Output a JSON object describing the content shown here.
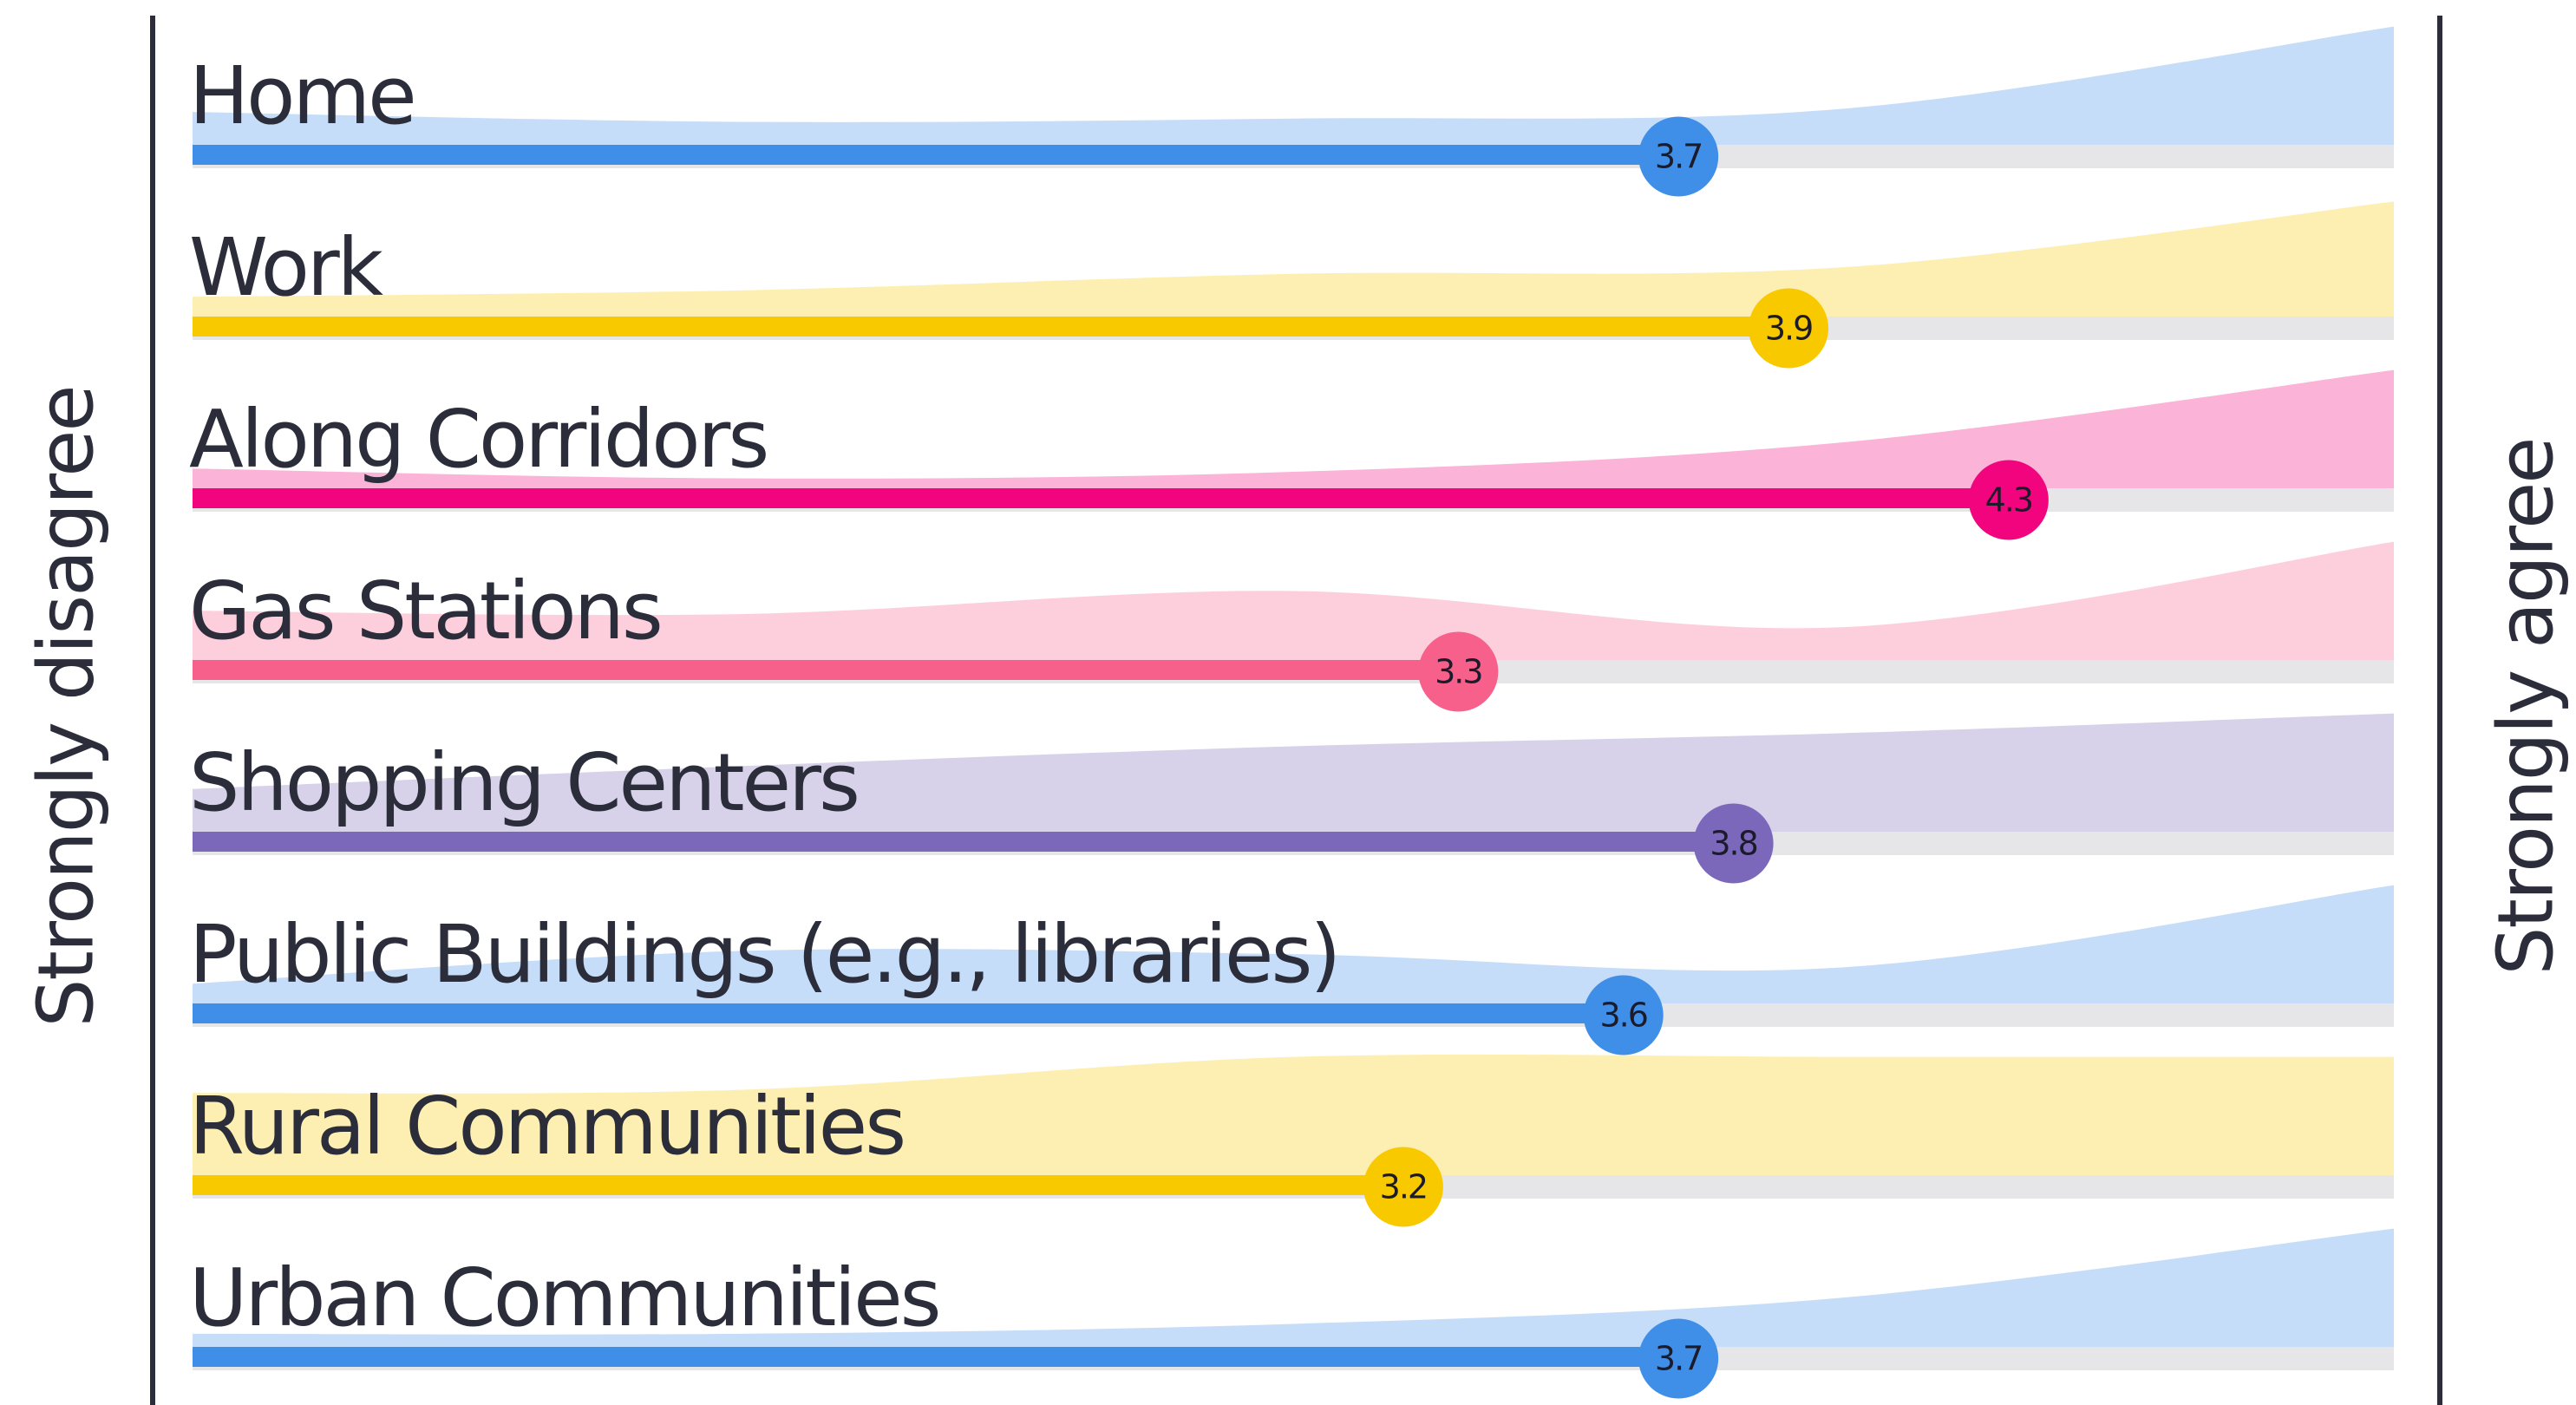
{
  "chart_data": {
    "type": "bar",
    "categories": [
      "Home",
      "Work",
      "Along Corridors",
      "Gas Stations",
      "Shopping Centers",
      "Public Buildings (e.g., libraries)",
      "Rural Communities",
      "Urban Communities"
    ],
    "values": [
      3.7,
      3.9,
      4.3,
      3.3,
      3.8,
      3.6,
      3.2,
      3.7
    ],
    "colors": [
      "#3f8fe8",
      "#f9c900",
      "#f2047f",
      "#f7608b",
      "#7c68bb",
      "#3f8fe8",
      "#f9c900",
      "#3f8fe8"
    ],
    "distribution": [
      [
        20,
        14,
        16,
        22,
        72
      ],
      [
        12,
        16,
        26,
        30,
        70
      ],
      [
        12,
        6,
        10,
        28,
        72
      ],
      [
        30,
        28,
        42,
        20,
        72
      ],
      [
        26,
        40,
        52,
        60,
        72
      ],
      [
        12,
        32,
        30,
        22,
        72
      ],
      [
        50,
        52,
        72,
        72,
        72
      ],
      [
        8,
        8,
        14,
        30,
        72
      ]
    ],
    "xlim": [
      1,
      5
    ],
    "x_label_left": "Strongly disagree",
    "x_label_right": "Strongly agree"
  }
}
